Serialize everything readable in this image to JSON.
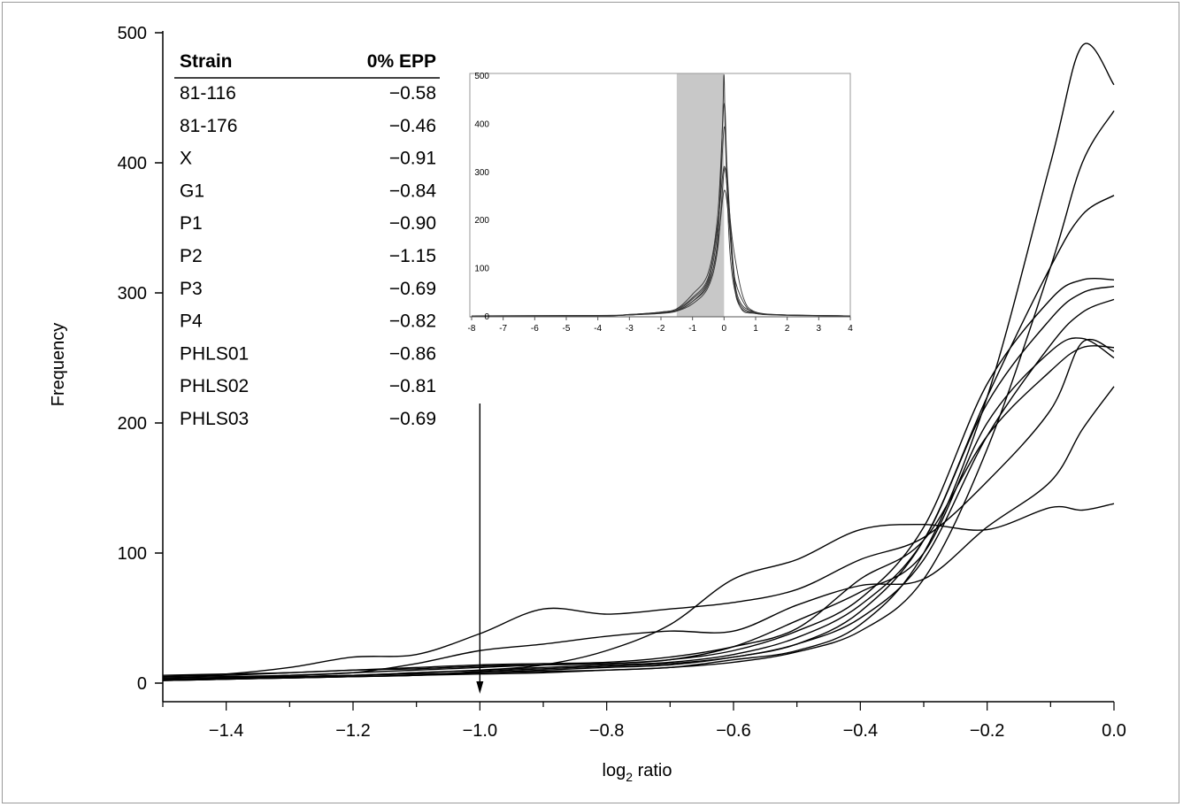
{
  "chart_data": [
    {
      "type": "line",
      "xlabel": "log",
      "xlabel_subscript": "2",
      "xlabel_suffix": " ratio",
      "ylabel": "Frequency",
      "xlim": [
        -1.5,
        0.0
      ],
      "ylim": [
        0,
        500
      ],
      "xticks": [
        -1.4,
        -1.2,
        -1.0,
        -0.8,
        -0.6,
        -0.4,
        -0.2,
        0.0
      ],
      "xtick_labels": [
        "−1.4",
        "−1.2",
        "−1.0",
        "−0.8",
        "−0.6",
        "−0.4",
        "−0.2",
        "0.0"
      ],
      "yticks": [
        0,
        100,
        200,
        300,
        400,
        500
      ],
      "ytick_labels": [
        "0",
        "100",
        "200",
        "300",
        "400",
        "500"
      ],
      "grid": false,
      "annotation": {
        "type": "arrow",
        "x": -1.0,
        "y_from": 215,
        "y_to": 0
      },
      "table": {
        "headers": [
          "Strain",
          "0% EPP"
        ],
        "rows": [
          [
            "81-116",
            "−0.58"
          ],
          [
            "81-176",
            "−0.46"
          ],
          [
            "X",
            "−0.91"
          ],
          [
            "G1",
            "−0.84"
          ],
          [
            "P1",
            "−0.90"
          ],
          [
            "P2",
            "−1.15"
          ],
          [
            "P3",
            "−0.69"
          ],
          [
            "P4",
            "−0.82"
          ],
          [
            "PHLS01",
            "−0.86"
          ],
          [
            "PHLS02",
            "−0.81"
          ],
          [
            "PHLS03",
            "−0.69"
          ]
        ]
      },
      "series": [
        {
          "x": [
            -1.5,
            -1.4,
            -1.3,
            -1.2,
            -1.1,
            -1.0,
            -0.9,
            -0.8,
            -0.7,
            -0.6,
            -0.5,
            -0.4,
            -0.3,
            -0.2,
            -0.1,
            -0.05,
            0.0
          ],
          "y": [
            5,
            7,
            12,
            20,
            22,
            38,
            57,
            53,
            57,
            62,
            72,
            95,
            112,
            155,
            210,
            262,
            255
          ]
        },
        {
          "x": [
            -1.5,
            -1.4,
            -1.3,
            -1.2,
            -1.1,
            -1.0,
            -0.9,
            -0.8,
            -0.7,
            -0.6,
            -0.5,
            -0.4,
            -0.3,
            -0.2,
            -0.1,
            -0.05,
            0.0
          ],
          "y": [
            3,
            4,
            6,
            8,
            15,
            25,
            30,
            36,
            40,
            40,
            60,
            75,
            80,
            120,
            155,
            195,
            228
          ]
        },
        {
          "x": [
            -1.5,
            -1.4,
            -1.3,
            -1.2,
            -1.1,
            -1.0,
            -0.9,
            -0.8,
            -0.7,
            -0.6,
            -0.5,
            -0.4,
            -0.3,
            -0.2,
            -0.1,
            -0.05,
            0.0
          ],
          "y": [
            4,
            5,
            5,
            6,
            8,
            10,
            14,
            25,
            45,
            80,
            95,
            118,
            122,
            118,
            135,
            133,
            138
          ]
        },
        {
          "x": [
            -1.5,
            -1.4,
            -1.3,
            -1.2,
            -1.1,
            -1.0,
            -0.9,
            -0.8,
            -0.7,
            -0.6,
            -0.5,
            -0.4,
            -0.3,
            -0.2,
            -0.1,
            -0.05,
            0.0
          ],
          "y": [
            2,
            3,
            4,
            5,
            6,
            7,
            8,
            10,
            12,
            18,
            25,
            45,
            100,
            220,
            400,
            490,
            460
          ]
        },
        {
          "x": [
            -1.5,
            -1.4,
            -1.3,
            -1.2,
            -1.1,
            -1.0,
            -0.9,
            -0.8,
            -0.7,
            -0.6,
            -0.5,
            -0.4,
            -0.3,
            -0.2,
            -0.1,
            -0.05,
            0.0
          ],
          "y": [
            3,
            4,
            5,
            6,
            7,
            8,
            9,
            10,
            12,
            16,
            24,
            40,
            80,
            180,
            320,
            400,
            440
          ]
        },
        {
          "x": [
            -1.5,
            -1.4,
            -1.3,
            -1.2,
            -1.1,
            -1.0,
            -0.9,
            -0.8,
            -0.7,
            -0.6,
            -0.5,
            -0.4,
            -0.3,
            -0.2,
            -0.1,
            -0.05,
            0.0
          ],
          "y": [
            2,
            3,
            4,
            5,
            6,
            8,
            10,
            12,
            14,
            20,
            30,
            55,
            110,
            220,
            320,
            360,
            375
          ]
        },
        {
          "x": [
            -1.5,
            -1.4,
            -1.3,
            -1.2,
            -1.1,
            -1.0,
            -0.9,
            -0.8,
            -0.7,
            -0.6,
            -0.5,
            -0.4,
            -0.3,
            -0.2,
            -0.1,
            -0.05,
            0.0
          ],
          "y": [
            4,
            5,
            6,
            8,
            10,
            12,
            14,
            15,
            18,
            25,
            40,
            65,
            120,
            230,
            295,
            310,
            310
          ]
        },
        {
          "x": [
            -1.5,
            -1.4,
            -1.3,
            -1.2,
            -1.1,
            -1.0,
            -0.9,
            -0.8,
            -0.7,
            -0.6,
            -0.5,
            -0.4,
            -0.3,
            -0.2,
            -0.1,
            -0.05,
            0.0
          ],
          "y": [
            3,
            4,
            5,
            6,
            8,
            10,
            12,
            14,
            16,
            22,
            35,
            60,
            110,
            215,
            280,
            300,
            305
          ]
        },
        {
          "x": [
            -1.5,
            -1.4,
            -1.3,
            -1.2,
            -1.1,
            -1.0,
            -0.9,
            -0.8,
            -0.7,
            -0.6,
            -0.5,
            -0.4,
            -0.3,
            -0.2,
            -0.1,
            -0.05,
            0.0
          ],
          "y": [
            2,
            3,
            4,
            5,
            6,
            9,
            11,
            13,
            15,
            20,
            30,
            50,
            95,
            190,
            260,
            285,
            295
          ]
        },
        {
          "x": [
            -1.5,
            -1.4,
            -1.3,
            -1.2,
            -1.1,
            -1.0,
            -0.9,
            -0.8,
            -0.7,
            -0.6,
            -0.5,
            -0.4,
            -0.3,
            -0.2,
            -0.1,
            -0.05,
            0.0
          ],
          "y": [
            5,
            6,
            8,
            10,
            11,
            13,
            14,
            15,
            18,
            28,
            48,
            70,
            100,
            200,
            255,
            265,
            250
          ]
        },
        {
          "x": [
            -1.5,
            -1.4,
            -1.3,
            -1.2,
            -1.1,
            -1.0,
            -0.9,
            -0.8,
            -0.7,
            -0.6,
            -0.5,
            -0.4,
            -0.3,
            -0.2,
            -0.1,
            -0.05,
            0.0
          ],
          "y": [
            6,
            7,
            8,
            10,
            12,
            14,
            15,
            16,
            20,
            28,
            42,
            80,
            110,
            190,
            240,
            258,
            258
          ]
        }
      ]
    },
    {
      "type": "line",
      "xlim": [
        -8,
        4
      ],
      "ylim": [
        0,
        500
      ],
      "xticks": [
        -8,
        -7,
        -6,
        -5,
        -4,
        -3,
        -2,
        -1,
        0,
        1,
        2,
        3,
        4
      ],
      "xtick_labels": [
        "-8",
        "-7",
        "-6",
        "-5",
        "-4",
        "-3",
        "-2",
        "-1",
        "0",
        "1",
        "2",
        "3",
        "4"
      ],
      "yticks": [
        0,
        100,
        200,
        300,
        400,
        500
      ],
      "ytick_labels": [
        "0",
        "100",
        "200",
        "300",
        "400",
        "500"
      ],
      "shaded_region": {
        "x_from": -1.5,
        "x_to": 0.0,
        "color": "#c8c8c8"
      },
      "series": [
        {
          "x": [
            -8,
            -4,
            -3,
            -2,
            -1.5,
            -1,
            -0.5,
            -0.2,
            -0.05,
            0,
            0.05,
            0.2,
            0.5,
            1,
            2,
            4
          ],
          "y": [
            0,
            0,
            2,
            6,
            10,
            30,
            70,
            160,
            400,
            500,
            350,
            120,
            20,
            5,
            2,
            0
          ]
        },
        {
          "x": [
            -8,
            -4,
            -3,
            -2,
            -1.5,
            -1,
            -0.5,
            -0.2,
            0,
            0.1,
            0.3,
            0.5,
            1,
            2,
            4
          ],
          "y": [
            0,
            0,
            3,
            8,
            15,
            45,
            90,
            210,
            440,
            300,
            100,
            30,
            8,
            2,
            0
          ]
        },
        {
          "x": [
            -8,
            -4,
            -3,
            -2,
            -1.5,
            -1,
            -0.5,
            -0.2,
            0,
            0.1,
            0.3,
            0.5,
            1,
            2,
            4
          ],
          "y": [
            0,
            1,
            2,
            7,
            12,
            35,
            75,
            180,
            390,
            290,
            90,
            25,
            6,
            2,
            0
          ]
        },
        {
          "x": [
            -8,
            -4,
            -3,
            -2,
            -1.5,
            -1,
            -0.5,
            -0.2,
            0,
            0.1,
            0.3,
            0.5,
            1,
            2,
            4
          ],
          "y": [
            0,
            0,
            2,
            5,
            10,
            25,
            60,
            140,
            300,
            260,
            80,
            20,
            5,
            1,
            0
          ]
        },
        {
          "x": [
            -8,
            -4,
            -3,
            -2,
            -1.5,
            -1,
            -0.5,
            -0.2,
            0,
            0.15,
            0.3,
            0.6,
            1,
            2,
            4
          ],
          "y": [
            0,
            0,
            3,
            8,
            14,
            38,
            80,
            190,
            310,
            230,
            140,
            40,
            8,
            2,
            0
          ]
        },
        {
          "x": [
            -8,
            -4,
            -3,
            -2,
            -1.5,
            -1,
            -0.5,
            -0.2,
            0,
            0.15,
            0.3,
            0.6,
            1,
            2,
            4
          ],
          "y": [
            0,
            1,
            2,
            6,
            11,
            30,
            65,
            150,
            260,
            200,
            90,
            30,
            6,
            2,
            0
          ]
        }
      ]
    }
  ]
}
